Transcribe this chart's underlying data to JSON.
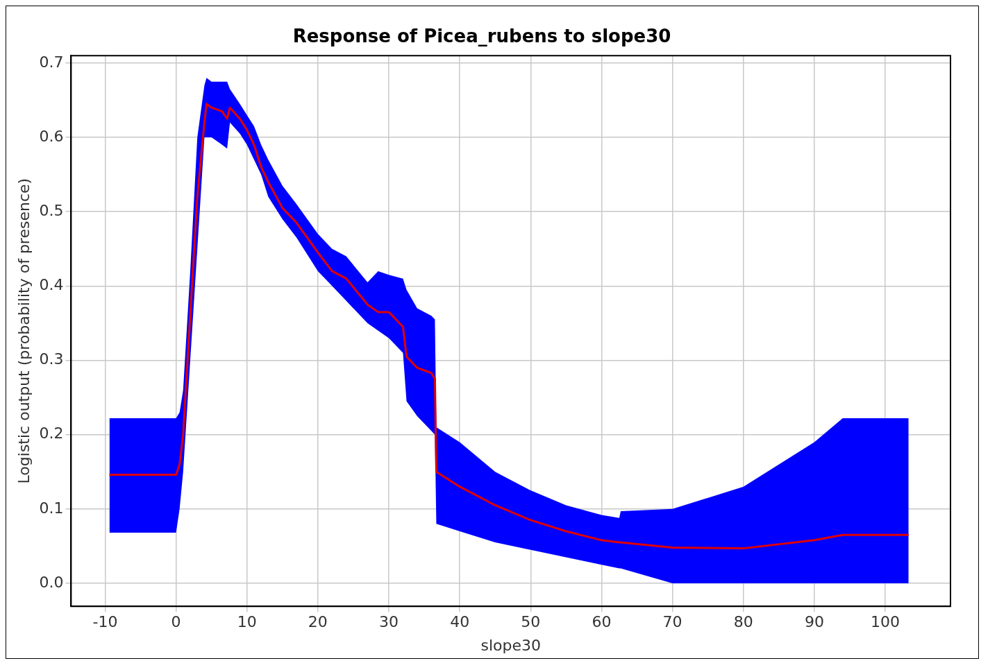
{
  "chart_data": {
    "type": "line",
    "title": "Response of Picea_rubens to slope30",
    "xlabel": "slope30",
    "ylabel": "Logistic output (probability of presence)",
    "x": [
      -9.4,
      0,
      0.5,
      1,
      2,
      3,
      4,
      4.3,
      5,
      6.5,
      7.2,
      7.6,
      9,
      10,
      11,
      12,
      13,
      15,
      17,
      20,
      22,
      24,
      27,
      28.5,
      30,
      32,
      32.5,
      34,
      36,
      36.5,
      36.7,
      40,
      45,
      50,
      55,
      60,
      62.5,
      62.7,
      70,
      80,
      90,
      94,
      103.3
    ],
    "series": [
      {
        "color": "#e00000",
        "values": [
          0.146,
          0.146,
          0.16,
          0.2,
          0.36,
          0.52,
          0.62,
          0.645,
          0.64,
          0.635,
          0.625,
          0.64,
          0.625,
          0.61,
          0.59,
          0.56,
          0.54,
          0.505,
          0.485,
          0.445,
          0.42,
          0.41,
          0.375,
          0.365,
          0.365,
          0.345,
          0.305,
          0.29,
          0.283,
          0.275,
          0.15,
          0.13,
          0.105,
          0.085,
          0.07,
          0.058,
          0.055,
          0.055,
          0.048,
          0.047,
          0.058,
          0.065,
          0.065
        ],
        "lower": [
          0.068,
          0.068,
          0.1,
          0.15,
          0.3,
          0.45,
          0.6,
          0.6,
          0.6,
          0.59,
          0.585,
          0.62,
          0.605,
          0.59,
          0.57,
          0.55,
          0.52,
          0.49,
          0.465,
          0.42,
          0.4,
          0.38,
          0.35,
          0.34,
          0.33,
          0.31,
          0.245,
          0.225,
          0.205,
          0.2,
          0.08,
          0.07,
          0.055,
          0.045,
          0.035,
          0.025,
          0.02,
          0.02,
          0.0,
          0.0,
          0.0,
          0.0,
          0.0
        ],
        "upper": [
          0.222,
          0.222,
          0.23,
          0.26,
          0.42,
          0.6,
          0.67,
          0.68,
          0.675,
          0.675,
          0.675,
          0.665,
          0.645,
          0.63,
          0.615,
          0.59,
          0.57,
          0.535,
          0.51,
          0.47,
          0.45,
          0.44,
          0.405,
          0.42,
          0.415,
          0.41,
          0.395,
          0.37,
          0.36,
          0.355,
          0.21,
          0.19,
          0.15,
          0.125,
          0.105,
          0.092,
          0.088,
          0.097,
          0.1,
          0.13,
          0.19,
          0.222,
          0.222
        ]
      }
    ],
    "xlim": [
      -14.8,
      109.2
    ],
    "xticks": [
      -10,
      0,
      10,
      20,
      30,
      40,
      50,
      60,
      70,
      80,
      90,
      100
    ],
    "ylim": [
      -0.031,
      0.71
    ],
    "yticks": [
      {
        "value": 0,
        "label": "0.0"
      },
      0.1,
      0.2,
      0.3,
      0.4,
      0.5,
      0.6,
      0.7
    ],
    "grid": true,
    "legend": false,
    "marker": "none",
    "line_style": "solid"
  }
}
